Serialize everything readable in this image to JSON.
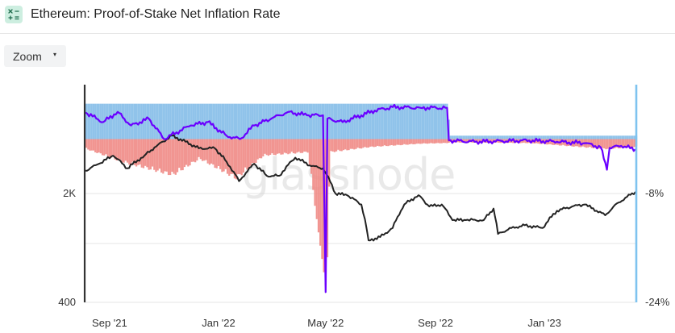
{
  "header": {
    "icon": "calculator-icon",
    "accent_color": "#cdeee0",
    "title": "Ethereum: Proof-of-Stake Net Inflation Rate"
  },
  "toolbar": {
    "zoom_label": "Zoom",
    "zoom_caret": "▾"
  },
  "watermark": "glassnode",
  "chart_data": {
    "type": "line",
    "title": "Ethereum: Proof-of-Stake Net Inflation Rate",
    "x_ticks": [
      "Sep '21",
      "Jan '22",
      "May '22",
      "Sep '22",
      "Jan '23"
    ],
    "x_range": [
      "2021-08-05",
      "2023-04-13"
    ],
    "y_left": {
      "scale": "log",
      "range": [
        400,
        10000
      ],
      "ticks": [
        {
          "value": 2000,
          "label": "2K"
        },
        {
          "value": 400,
          "label": "400"
        }
      ]
    },
    "y_right": {
      "scale": "linear",
      "range": [
        -24,
        8
      ],
      "ticks": [
        {
          "value": -8,
          "label": "-8%"
        },
        {
          "value": -24,
          "label": "-24%"
        }
      ]
    },
    "grid": true,
    "legend": "none",
    "colors": {
      "price": "#222222",
      "net_inflation": "#6a00ff",
      "issuance_bars": "#84bde8",
      "burn_bars": "#f08a85",
      "right_axis": "#7ec3ef"
    },
    "series": [
      {
        "axis": "left",
        "style": "line",
        "color": "#222222",
        "points": [
          [
            "2021-08-05",
            2800
          ],
          [
            "2021-08-20",
            3100
          ],
          [
            "2021-09-05",
            3500
          ],
          [
            "2021-09-21",
            2900
          ],
          [
            "2021-10-10",
            3500
          ],
          [
            "2021-10-25",
            4100
          ],
          [
            "2021-11-10",
            4700
          ],
          [
            "2021-11-25",
            4300
          ],
          [
            "2021-12-10",
            3900
          ],
          [
            "2021-12-28",
            3900
          ],
          [
            "2022-01-10",
            3200
          ],
          [
            "2022-01-24",
            2400
          ],
          [
            "2022-02-10",
            3100
          ],
          [
            "2022-02-24",
            2600
          ],
          [
            "2022-03-10",
            2600
          ],
          [
            "2022-03-28",
            3400
          ],
          [
            "2022-04-15",
            3000
          ],
          [
            "2022-04-28",
            2900
          ],
          [
            "2022-05-12",
            2000
          ],
          [
            "2022-05-25",
            1950
          ],
          [
            "2022-06-10",
            1700
          ],
          [
            "2022-06-18",
            1000
          ],
          [
            "2022-07-01",
            1050
          ],
          [
            "2022-07-15",
            1200
          ],
          [
            "2022-07-28",
            1700
          ],
          [
            "2022-08-13",
            1950
          ],
          [
            "2022-08-25",
            1650
          ],
          [
            "2022-09-08",
            1700
          ],
          [
            "2022-09-20",
            1350
          ],
          [
            "2022-10-05",
            1350
          ],
          [
            "2022-10-25",
            1350
          ],
          [
            "2022-11-05",
            1600
          ],
          [
            "2022-11-10",
            1100
          ],
          [
            "2022-11-25",
            1200
          ],
          [
            "2022-12-10",
            1250
          ],
          [
            "2022-12-30",
            1200
          ],
          [
            "2023-01-15",
            1550
          ],
          [
            "2023-02-01",
            1650
          ],
          [
            "2023-02-15",
            1700
          ],
          [
            "2023-03-10",
            1450
          ],
          [
            "2023-03-25",
            1750
          ],
          [
            "2023-04-13",
            2050
          ]
        ]
      },
      {
        "axis": "right",
        "style": "line",
        "color": "#6a00ff",
        "points": [
          [
            "2021-08-05",
            3.9
          ],
          [
            "2021-08-25",
            2.5
          ],
          [
            "2021-09-10",
            4.0
          ],
          [
            "2021-09-25",
            2.0
          ],
          [
            "2021-10-15",
            3.0
          ],
          [
            "2021-11-01",
            0.0
          ],
          [
            "2021-11-15",
            1.0
          ],
          [
            "2021-12-01",
            2.0
          ],
          [
            "2021-12-20",
            2.5
          ],
          [
            "2022-01-10",
            0.5
          ],
          [
            "2022-01-25",
            0.0
          ],
          [
            "2022-02-10",
            2.0
          ],
          [
            "2022-03-01",
            3.0
          ],
          [
            "2022-03-20",
            4.0
          ],
          [
            "2022-04-10",
            3.5
          ],
          [
            "2022-04-28",
            3.5
          ],
          [
            "2022-05-01",
            -22.5
          ],
          [
            "2022-05-03",
            3.0
          ],
          [
            "2022-05-20",
            2.5
          ],
          [
            "2022-06-10",
            3.5
          ],
          [
            "2022-06-25",
            4.2
          ],
          [
            "2022-07-15",
            4.7
          ],
          [
            "2022-08-15",
            4.6
          ],
          [
            "2022-09-14",
            4.6
          ],
          [
            "2022-09-16",
            -0.2
          ],
          [
            "2022-10-15",
            -0.4
          ],
          [
            "2022-11-15",
            -0.3
          ],
          [
            "2022-12-15",
            -0.2
          ],
          [
            "2023-01-15",
            -0.4
          ],
          [
            "2023-02-15",
            -0.6
          ],
          [
            "2023-03-05",
            -1.2
          ],
          [
            "2023-03-12",
            -4.5
          ],
          [
            "2023-03-15",
            -1.3
          ],
          [
            "2023-03-28",
            -1.0
          ],
          [
            "2023-04-13",
            -1.5
          ]
        ]
      },
      {
        "axis": "right",
        "style": "bars",
        "color": "#84bde8",
        "points": [
          [
            "2021-08-05",
            5.2
          ],
          [
            "2022-09-14",
            5.2
          ],
          [
            "2022-09-16",
            0.5
          ],
          [
            "2023-04-13",
            0.5
          ]
        ]
      },
      {
        "axis": "right",
        "style": "bars",
        "color": "#f08a85",
        "points": [
          [
            "2021-08-05",
            -1.5
          ],
          [
            "2021-09-15",
            -3.5
          ],
          [
            "2021-11-10",
            -5.5
          ],
          [
            "2021-12-10",
            -3.0
          ],
          [
            "2022-01-20",
            -6.0
          ],
          [
            "2022-02-20",
            -2.5
          ],
          [
            "2022-04-10",
            -2.0
          ],
          [
            "2022-05-01",
            -22.5
          ],
          [
            "2022-05-05",
            -2.0
          ],
          [
            "2022-06-20",
            -1.2
          ],
          [
            "2022-08-15",
            -0.7
          ],
          [
            "2022-09-14",
            -0.6
          ],
          [
            "2022-09-16",
            -0.5
          ],
          [
            "2022-12-15",
            -0.6
          ],
          [
            "2023-03-10",
            -1.5
          ],
          [
            "2023-04-13",
            -1.2
          ]
        ]
      }
    ]
  }
}
